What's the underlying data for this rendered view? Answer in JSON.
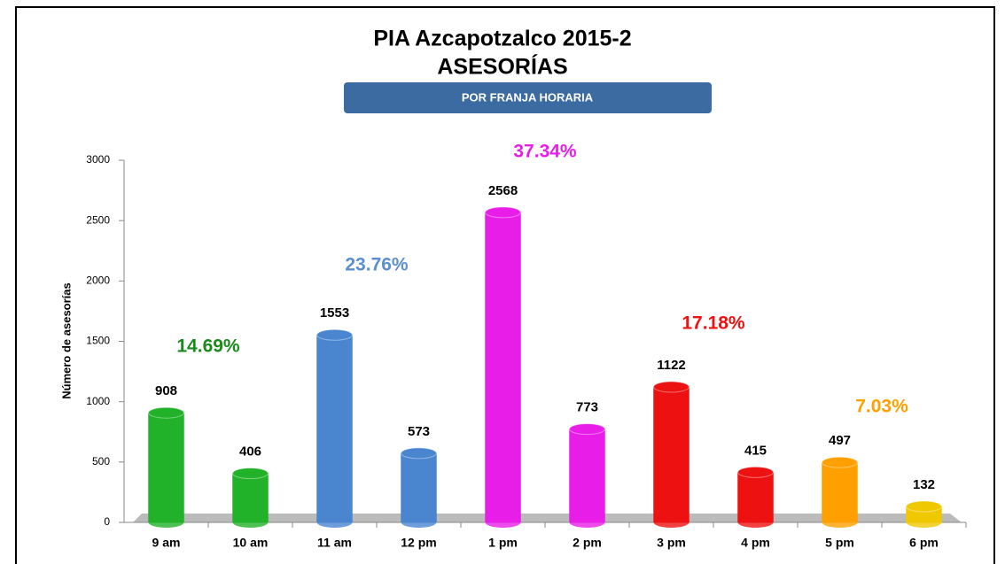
{
  "chart_data": {
    "type": "bar",
    "title": "PIA Azcapotzalco 2015-2",
    "subtitle": "ASESORÍAS",
    "banner": "POR FRANJA HORARIA",
    "y_label": "Número de asesorías",
    "categories": [
      "9 am",
      "10 am",
      "11 am",
      "12 pm",
      "1 pm",
      "2 pm",
      "3 pm",
      "4 pm",
      "5 pm",
      "6 pm"
    ],
    "values": [
      908,
      406,
      1553,
      573,
      2568,
      773,
      1122,
      415,
      497,
      132
    ],
    "colors": [
      "#22b22a",
      "#22b22a",
      "#4a86d0",
      "#4a86d0",
      "#e81ee8",
      "#e81ee8",
      "#ee1111",
      "#ee1111",
      "#ffa000",
      "#f0c800"
    ],
    "ylim": [
      0,
      3000
    ],
    "yticks": [
      0,
      500,
      1000,
      1500,
      2000,
      2500,
      3000
    ],
    "annotations": [
      {
        "text": "14.69%",
        "color": "#1a8a1a"
      },
      {
        "text": "23.76%",
        "color": "#5b8fd0"
      },
      {
        "text": "37.34%",
        "color": "#e81ee8"
      },
      {
        "text": "17.18%",
        "color": "#ee1111"
      },
      {
        "text": "7.03%",
        "color": "#ffa000"
      }
    ]
  }
}
